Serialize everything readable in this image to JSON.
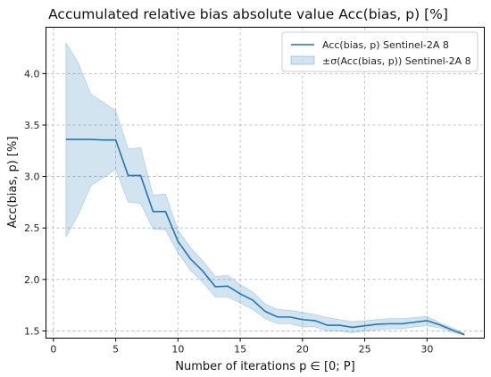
{
  "chart_data": {
    "type": "line",
    "title": "Accumulated relative bias absolute value Acc(bias, p) [%]",
    "xlabel": "Number of iterations p ∈ [0; P]",
    "ylabel": "Acc(bias, p) [%]",
    "xlim": [
      -0.6,
      34.6
    ],
    "ylim": [
      1.43,
      4.45
    ],
    "xticks": [
      0,
      5,
      10,
      15,
      20,
      25,
      30
    ],
    "xtick_labels": [
      "0",
      "5",
      "10",
      "15",
      "20",
      "25",
      "30"
    ],
    "yticks": [
      1.5,
      2.0,
      2.5,
      3.0,
      3.5,
      4.0
    ],
    "ytick_labels": [
      "1.5",
      "2.0",
      "2.5",
      "3.0",
      "3.5",
      "4.0"
    ],
    "grid": true,
    "legend_position": "top-right",
    "x": [
      1,
      2,
      3,
      4,
      5,
      6,
      7,
      8,
      9,
      10,
      11,
      12,
      13,
      14,
      15,
      16,
      17,
      18,
      19,
      20,
      21,
      22,
      23,
      24,
      25,
      26,
      27,
      28,
      29,
      30,
      31,
      32,
      33
    ],
    "series": [
      {
        "name": "Acc(bias, p) Sentinel-2A 8",
        "color": "#1f77b4",
        "values": [
          3.36,
          3.36,
          3.36,
          3.355,
          3.355,
          3.01,
          3.01,
          2.66,
          2.66,
          2.37,
          2.2,
          2.08,
          1.93,
          1.935,
          1.86,
          1.8,
          1.69,
          1.635,
          1.635,
          1.61,
          1.6,
          1.555,
          1.555,
          1.535,
          1.55,
          1.565,
          1.57,
          1.57,
          1.585,
          1.6,
          1.56,
          1.51,
          1.465
        ]
      }
    ],
    "band": {
      "name": "±σ(Acc(bias, p)) Sentinel-2A 8",
      "color": "#1f77b4",
      "opacity": 0.2,
      "upper": [
        4.3,
        4.1,
        3.8,
        3.72,
        3.64,
        3.27,
        3.28,
        2.82,
        2.83,
        2.48,
        2.31,
        2.18,
        2.03,
        2.04,
        1.95,
        1.88,
        1.76,
        1.71,
        1.7,
        1.68,
        1.66,
        1.63,
        1.61,
        1.59,
        1.6,
        1.61,
        1.62,
        1.62,
        1.63,
        1.64,
        1.58,
        1.53,
        1.475
      ],
      "lower": [
        2.41,
        2.63,
        2.91,
        2.99,
        3.07,
        2.75,
        2.74,
        2.49,
        2.48,
        2.26,
        2.09,
        1.97,
        1.83,
        1.83,
        1.77,
        1.71,
        1.62,
        1.57,
        1.57,
        1.54,
        1.54,
        1.5,
        1.5,
        1.48,
        1.5,
        1.51,
        1.52,
        1.52,
        1.54,
        1.55,
        1.53,
        1.49,
        1.455
      ]
    }
  }
}
